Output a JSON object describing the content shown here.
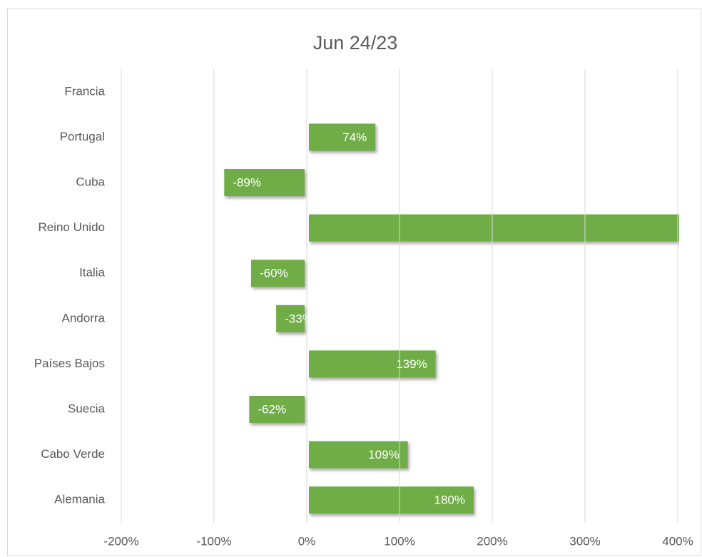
{
  "chart_data": {
    "type": "bar",
    "orientation": "horizontal",
    "title": "Jun 24/23",
    "categories": [
      "Francia",
      "Portugal",
      "Cuba",
      "Reino Unido",
      "Italia",
      "Andorra",
      "Países Bajos",
      "Suecia",
      "Cabo Verde",
      "Alemania"
    ],
    "values": [
      null,
      74,
      -89,
      450,
      -60,
      -33,
      139,
      -62,
      109,
      180
    ],
    "value_labels": [
      null,
      "74%",
      "-89%",
      null,
      "-60%",
      "-33%",
      "139%",
      "-62%",
      "109%",
      "180%"
    ],
    "color": "#70ad47",
    "xlim": [
      -200,
      400
    ],
    "xticks": [
      {
        "value": -200,
        "label": "-200%"
      },
      {
        "value": -100,
        "label": "-100%"
      },
      {
        "value": 0,
        "label": "0%"
      },
      {
        "value": 100,
        "label": "100%"
      },
      {
        "value": 200,
        "label": "200%"
      },
      {
        "value": 300,
        "label": "300%"
      },
      {
        "value": 400,
        "label": "400%"
      }
    ],
    "grid": true
  }
}
